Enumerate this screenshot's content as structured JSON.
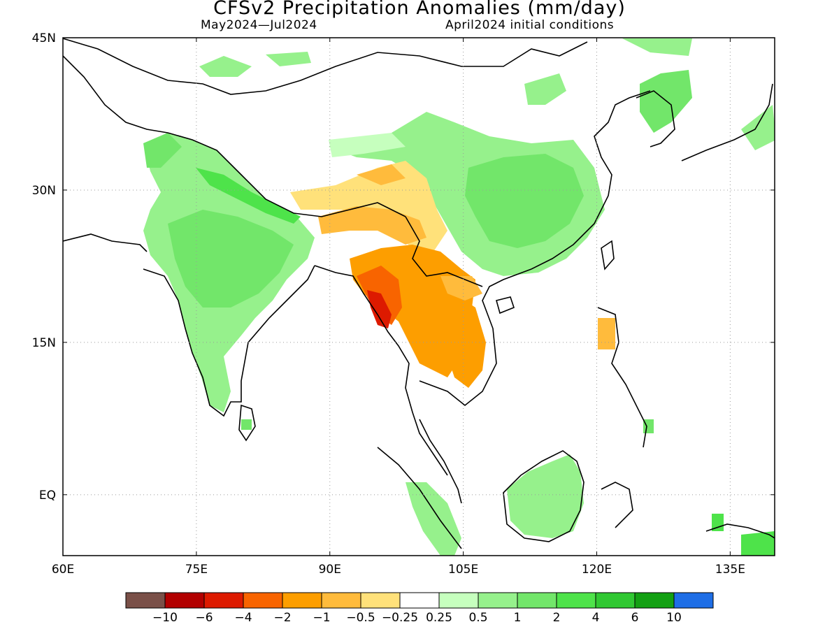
{
  "title": "CFSv2 Precipitation Anomalies (mm/day)",
  "subtitle_left": "May2024—Jul2024",
  "subtitle_right": "April2024 initial conditions",
  "map": {
    "lon_range": [
      60,
      140
    ],
    "lat_range": [
      -6,
      45
    ],
    "lon_ticks": [
      "60E",
      "75E",
      "90E",
      "105E",
      "120E",
      "135E"
    ],
    "lon_tick_values": [
      60,
      75,
      90,
      105,
      120,
      135
    ],
    "lat_ticks": [
      "45N",
      "30N",
      "15N",
      "EQ"
    ],
    "lat_tick_values": [
      45,
      30,
      15,
      0
    ],
    "grid": "dotted"
  },
  "colorbar": {
    "labels": [
      "−10",
      "−6",
      "−4",
      "−2",
      "−1",
      "−0.5",
      "−0.25",
      "0.25",
      "0.5",
      "1",
      "2",
      "4",
      "6",
      "10"
    ],
    "colors": [
      "#7a5048",
      "#b20000",
      "#dd1a00",
      "#f86400",
      "#fd9e00",
      "#ffbb3c",
      "#ffe17a",
      "#ffffff",
      "#c6ffbe",
      "#96f18c",
      "#72e66a",
      "#4ee34a",
      "#30c832",
      "#13a013",
      "#1e6ee6"
    ]
  },
  "anomaly_regions": [
    {
      "name": "india-wet",
      "color": "#96f18c"
    },
    {
      "name": "india-core",
      "color": "#72e66a"
    },
    {
      "name": "himalaya-strip",
      "color": "#4ee34a"
    },
    {
      "name": "china-wet",
      "color": "#96f18c"
    },
    {
      "name": "china-core",
      "color": "#72e66a"
    },
    {
      "name": "korea-japan-wet",
      "color": "#72e66a"
    },
    {
      "name": "tibet-dry",
      "color": "#ffbb3c"
    },
    {
      "name": "tibet-dry-edge",
      "color": "#ffe17a"
    },
    {
      "name": "myanmar-dry",
      "color": "#fd9e00"
    },
    {
      "name": "myanmar-coast",
      "color": "#f86400"
    },
    {
      "name": "arakan-coast",
      "color": "#dd1a00"
    },
    {
      "name": "thailand-dry",
      "color": "#fd9e00"
    },
    {
      "name": "borneo-wet",
      "color": "#96f18c"
    },
    {
      "name": "sumatra-wet",
      "color": "#96f18c"
    },
    {
      "name": "new-guinea-wet",
      "color": "#4ee34a"
    }
  ]
}
